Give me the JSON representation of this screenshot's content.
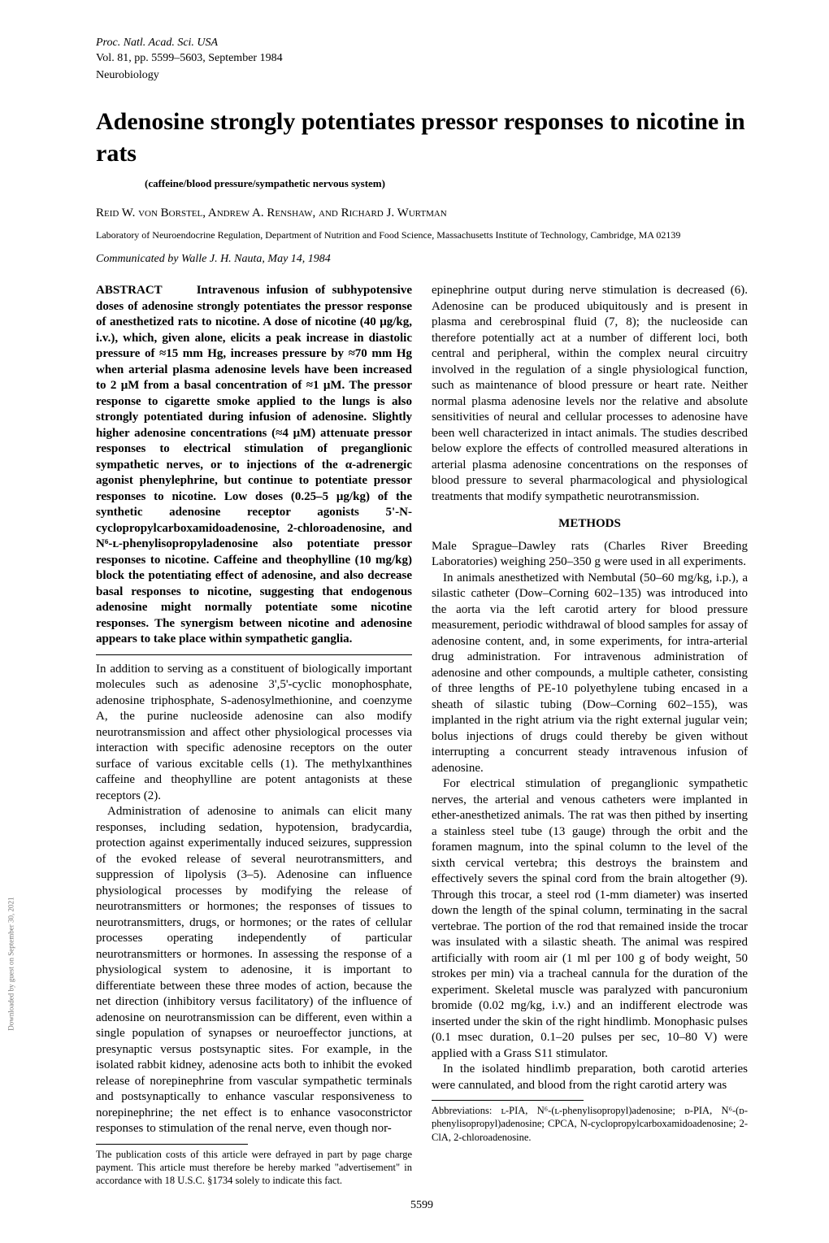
{
  "header": {
    "journal": "Proc. Natl. Acad. Sci. USA",
    "volline": "Vol. 81, pp. 5599–5603, September 1984",
    "section": "Neurobiology"
  },
  "title": "Adenosine strongly potentiates pressor responses to nicotine in rats",
  "subtitle": "(caffeine/blood pressure/sympathetic nervous system)",
  "authors": "Reid W. von Borstel, Andrew A. Renshaw, and Richard J. Wurtman",
  "affiliation": "Laboratory of Neuroendocrine Regulation, Department of Nutrition and Food Science, Massachusetts Institute of Technology, Cambridge, MA 02139",
  "communicated": "Communicated by Walle J. H. Nauta, May 14, 1984",
  "abstract_label": "ABSTRACT",
  "abstract": "Intravenous infusion of subhypotensive doses of adenosine strongly potentiates the pressor response of anesthetized rats to nicotine. A dose of nicotine (40 μg/kg, i.v.), which, given alone, elicits a peak increase in diastolic pressure of ≈15 mm Hg, increases pressure by ≈70 mm Hg when arterial plasma adenosine levels have been increased to 2 μM from a basal concentration of ≈1 μM. The pressor response to cigarette smoke applied to the lungs is also strongly potentiated during infusion of adenosine. Slightly higher adenosine concentrations (≈4 μM) attenuate pressor responses to electrical stimulation of preganglionic sympathetic nerves, or to injections of the α-adrenergic agonist phenylephrine, but continue to potentiate pressor responses to nicotine. Low doses (0.25–5 μg/kg) of the synthetic adenosine receptor agonists 5'-N-cyclopropylcarboxamidoadenosine, 2-chloroadenosine, and N⁶-ʟ-phenylisopropyladenosine also potentiate pressor responses to nicotine. Caffeine and theophylline (10 mg/kg) block the potentiating effect of adenosine, and also decrease basal responses to nicotine, suggesting that endogenous adenosine might normally potentiate some nicotine responses. The synergism between nicotine and adenosine appears to take place within sympathetic ganglia.",
  "body_left_p1": "In addition to serving as a constituent of biologically important molecules such as adenosine 3',5'-cyclic monophosphate, adenosine triphosphate, S-adenosylmethionine, and coenzyme A, the purine nucleoside adenosine can also modify neurotransmission and affect other physiological processes via interaction with specific adenosine receptors on the outer surface of various excitable cells (1). The methylxanthines caffeine and theophylline are potent antagonists at these receptors (2).",
  "body_left_p2": "Administration of adenosine to animals can elicit many responses, including sedation, hypotension, bradycardia, protection against experimentally induced seizures, suppression of the evoked release of several neurotransmitters, and suppression of lipolysis (3–5). Adenosine can influence physiological processes by modifying the release of neurotransmitters or hormones; the responses of tissues to neurotransmitters, drugs, or hormones; or the rates of cellular processes operating independently of particular neurotransmitters or hormones. In assessing the response of a physiological system to adenosine, it is important to differentiate between these three modes of action, because the net direction (inhibitory versus facilitatory) of the influence of adenosine on neurotransmission can be different, even within a single population of synapses or neuroeffector junctions, at presynaptic versus postsynaptic sites. For example, in the isolated rabbit kidney, adenosine acts both to inhibit the evoked release of norepinephrine from vascular sympathetic terminals and postsynaptically to enhance vascular responsiveness to norepinephrine; the net effect is to enhance vasoconstrictor responses to stimulation of the renal nerve, even though nor-",
  "body_right_p1": "epinephrine output during nerve stimulation is decreased (6). Adenosine can be produced ubiquitously and is present in plasma and cerebrospinal fluid (7, 8); the nucleoside can therefore potentially act at a number of different loci, both central and peripheral, within the complex neural circuitry involved in the regulation of a single physiological function, such as maintenance of blood pressure or heart rate. Neither normal plasma adenosine levels nor the relative and absolute sensitivities of neural and cellular processes to adenosine have been well characterized in intact animals. The studies described below explore the effects of controlled measured alterations in arterial plasma adenosine concentrations on the responses of blood pressure to several pharmacological and physiological treatments that modify sympathetic neurotransmission.",
  "methods_heading": "METHODS",
  "body_right_p2": "Male Sprague–Dawley rats (Charles River Breeding Laboratories) weighing 250–350 g were used in all experiments.",
  "body_right_p3": "In animals anesthetized with Nembutal (50–60 mg/kg, i.p.), a silastic catheter (Dow–Corning 602–135) was introduced into the aorta via the left carotid artery for blood pressure measurement, periodic withdrawal of blood samples for assay of adenosine content, and, in some experiments, for intra-arterial drug administration. For intravenous administration of adenosine and other compounds, a multiple catheter, consisting of three lengths of PE-10 polyethylene tubing encased in a sheath of silastic tubing (Dow–Corning 602–155), was implanted in the right atrium via the right external jugular vein; bolus injections of drugs could thereby be given without interrupting a concurrent steady intravenous infusion of adenosine.",
  "body_right_p4": "For electrical stimulation of preganglionic sympathetic nerves, the arterial and venous catheters were implanted in ether-anesthetized animals. The rat was then pithed by inserting a stainless steel tube (13 gauge) through the orbit and the foramen magnum, into the spinal column to the level of the sixth cervical vertebra; this destroys the brainstem and effectively severs the spinal cord from the brain altogether (9). Through this trocar, a steel rod (1-mm diameter) was inserted down the length of the spinal column, terminating in the sacral vertebrae. The portion of the rod that remained inside the trocar was insulated with a silastic sheath. The animal was respired artificially with room air (1 ml per 100 g of body weight, 50 strokes per min) via a tracheal cannula for the duration of the experiment. Skeletal muscle was paralyzed with pancuronium bromide (0.02 mg/kg, i.v.) and an indifferent electrode was inserted under the skin of the right hindlimb. Monophasic pulses (0.1 msec duration, 0.1–20 pulses per sec, 10–80 V) were applied with a Grass S11 stimulator.",
  "body_right_p5": "In the isolated hindlimb preparation, both carotid arteries were cannulated, and blood from the right carotid artery was",
  "footnote_left": "The publication costs of this article were defrayed in part by page charge payment. This article must therefore be hereby marked \"advertisement\" in accordance with 18 U.S.C. §1734 solely to indicate this fact.",
  "footnote_right": "Abbreviations: ʟ-PIA, N⁶-(ʟ-phenylisopropyl)adenosine; ᴅ-PIA, N⁶-(ᴅ-phenylisopropyl)adenosine; CPCA, N-cyclopropylcarboxamidoadenosine; 2-ClA, 2-chloroadenosine.",
  "page_number": "5599",
  "sidetext": "Downloaded by guest on September 30, 2021"
}
